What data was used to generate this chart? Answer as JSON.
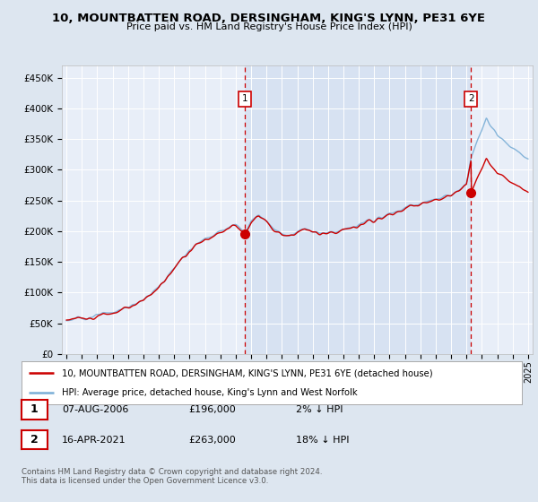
{
  "title": "10, MOUNTBATTEN ROAD, DERSINGHAM, KING'S LYNN, PE31 6YE",
  "subtitle": "Price paid vs. HM Land Registry's House Price Index (HPI)",
  "ylim": [
    0,
    470000
  ],
  "yticks": [
    0,
    50000,
    100000,
    150000,
    200000,
    250000,
    300000,
    350000,
    400000,
    450000
  ],
  "ytick_labels": [
    "£0",
    "£50K",
    "£100K",
    "£150K",
    "£200K",
    "£250K",
    "£300K",
    "£350K",
    "£400K",
    "£450K"
  ],
  "bg_color": "#dde6f0",
  "plot_bg": "#e8eef8",
  "red_color": "#cc0000",
  "blue_color": "#7aaed6",
  "legend_label_red": "10, MOUNTBATTEN ROAD, DERSINGHAM, KING'S LYNN, PE31 6YE (detached house)",
  "legend_label_blue": "HPI: Average price, detached house, King's Lynn and West Norfolk",
  "sale1_date": "07-AUG-2006",
  "sale1_price": "£196,000",
  "sale1_hpi": "2% ↓ HPI",
  "sale2_date": "16-APR-2021",
  "sale2_price": "£263,000",
  "sale2_hpi": "18% ↓ HPI",
  "footnote": "Contains HM Land Registry data © Crown copyright and database right 2024.\nThis data is licensed under the Open Government Licence v3.0.",
  "sale1_x": 2006.6,
  "sale1_y": 196000,
  "sale2_x": 2021.3,
  "sale2_y": 263000,
  "xmin": 1995.0,
  "xmax": 2025.0
}
